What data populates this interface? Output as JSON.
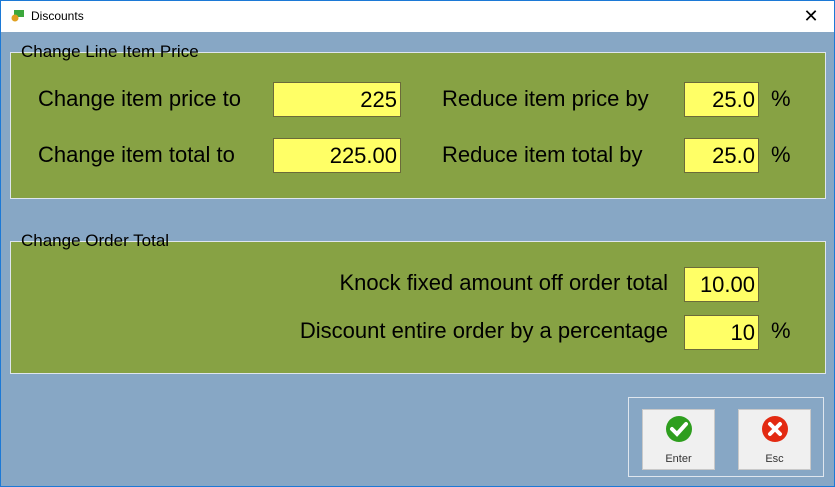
{
  "window": {
    "title": "Discounts",
    "close": "✕"
  },
  "line_item": {
    "title": "Change Line Item Price",
    "price_to_label": "Change item price to",
    "price_to_value": "225",
    "total_to_label": "Change item total to",
    "total_to_value": "225.00",
    "reduce_price_label": "Reduce item price by",
    "reduce_price_value": "25.0",
    "reduce_total_label": "Reduce item total by",
    "reduce_total_value": "25.0",
    "percent": "%"
  },
  "order": {
    "title": "Change Order Total",
    "fixed_label": "Knock fixed amount off order total",
    "fixed_value": "10.00",
    "pct_label": "Discount entire order by a percentage",
    "pct_value": "10",
    "percent": "%"
  },
  "buttons": {
    "enter": "Enter",
    "esc": "Esc"
  },
  "colors": {
    "panel": "#87a244",
    "background": "#87a7c5",
    "input": "#ffff66"
  }
}
